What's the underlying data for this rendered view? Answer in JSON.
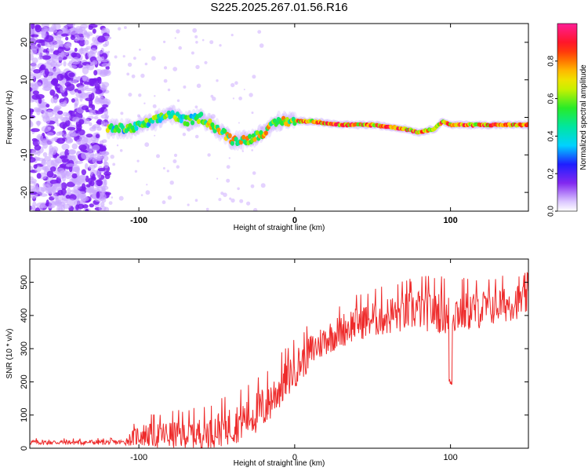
{
  "title": "S225.2025.267.01.56.R16",
  "colors": {
    "snr_line": "#ee2b2b",
    "scatter_purple": "#7a1bf0",
    "scatter_light": "#c9a6ff",
    "axis": "#000000"
  },
  "chart_data": [
    {
      "type": "heatmap",
      "name": "spectrogram",
      "title": "",
      "xlabel": "Height of straight line (km)",
      "ylabel": "Frequency (Hz)",
      "xlim": [
        -170,
        150
      ],
      "ylim": [
        -25,
        25
      ],
      "x_ticks": [
        -100,
        0,
        100
      ],
      "y_ticks": [
        20,
        10,
        0,
        -10,
        -20
      ],
      "colorbar": {
        "label": "Normalized spectral amplitude",
        "range": [
          0,
          1
        ],
        "ticks": [
          0.0,
          0.2,
          0.4,
          0.6,
          0.8
        ],
        "tick_labels": [
          "0.0",
          "0.2",
          "0.4",
          "0.6",
          "0.8"
        ]
      },
      "ridge": {
        "description_x": [
          -120,
          -105,
          -90,
          -80,
          -70,
          -60,
          -50,
          -40,
          -30,
          -20,
          -10,
          0,
          10,
          30,
          50,
          70,
          80,
          90,
          95,
          100,
          110,
          120,
          150
        ],
        "frequency_hz": [
          -3,
          -3,
          -1,
          1,
          -1,
          0,
          -3,
          -6,
          -6,
          -4,
          -1,
          -1,
          -1,
          -2,
          -2,
          -3,
          -4,
          -3,
          -1,
          -2,
          -2,
          -2,
          -2
        ]
      },
      "noise_region_x": [
        -170,
        -120
      ]
    },
    {
      "type": "line",
      "name": "snr",
      "title": "",
      "xlabel": "Height of straight line (km)",
      "ylabel": "SNR (10 * v/v)",
      "xlim": [
        -170,
        150
      ],
      "ylim": [
        0,
        570
      ],
      "x_ticks": [
        -100,
        0,
        100
      ],
      "y_ticks": [
        0,
        100,
        200,
        300,
        400,
        500
      ],
      "trend_x": [
        -170,
        -110,
        -100,
        -80,
        -60,
        -40,
        -20,
        0,
        10,
        20,
        40,
        60,
        80,
        100,
        120,
        140,
        150
      ],
      "trend_y": [
        18,
        18,
        40,
        40,
        45,
        70,
        120,
        240,
        290,
        330,
        380,
        400,
        420,
        410,
        420,
        440,
        450
      ],
      "noise_amplitude": [
        8,
        8,
        35,
        45,
        50,
        60,
        70,
        60,
        55,
        50,
        55,
        60,
        65,
        70,
        60,
        55,
        50
      ],
      "dip": {
        "x": 100,
        "y": 190
      }
    }
  ]
}
